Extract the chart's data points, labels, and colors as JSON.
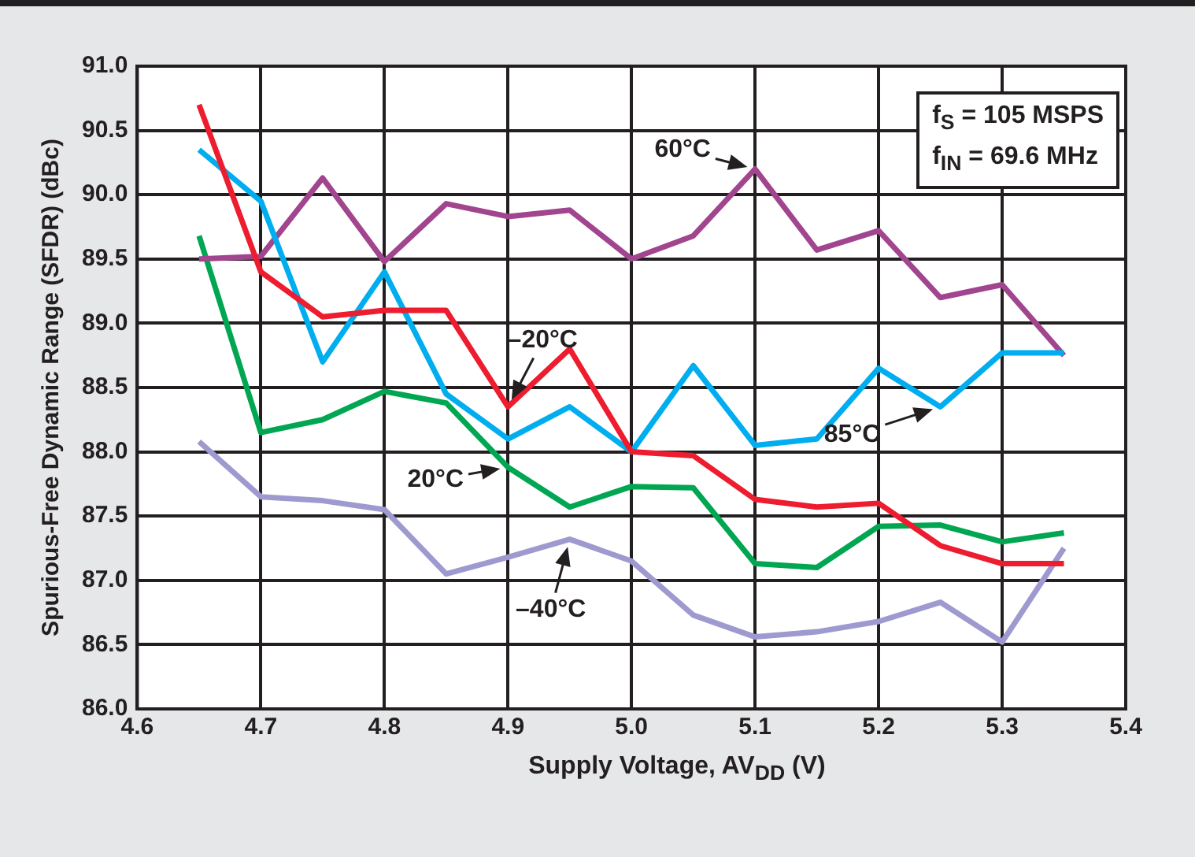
{
  "chart_data": {
    "type": "line",
    "xlabel": "Supply Voltage, AV$_{DD}$ (V)",
    "ylabel": "Spurious-Free Dynamic Range (SFDR) (dBc)",
    "x": [
      4.65,
      4.7,
      4.75,
      4.8,
      4.85,
      4.9,
      4.95,
      5.0,
      5.05,
      5.1,
      5.15,
      5.2,
      5.25,
      5.3,
      5.35
    ],
    "series": [
      {
        "name": "–20°C",
        "color": "#ed1c2e",
        "values": [
          90.7,
          89.4,
          89.05,
          89.1,
          89.1,
          88.35,
          88.8,
          88.0,
          87.97,
          87.63,
          87.57,
          87.6,
          87.27,
          87.13,
          87.13
        ]
      },
      {
        "name": "85°C",
        "color": "#00aeef",
        "values": [
          90.35,
          89.95,
          88.7,
          89.4,
          88.45,
          88.1,
          88.35,
          88.0,
          88.67,
          88.05,
          88.1,
          88.65,
          88.35,
          88.77,
          88.77
        ]
      },
      {
        "name": "60°C",
        "color": "#a0458e",
        "values": [
          89.5,
          89.52,
          90.13,
          89.48,
          89.93,
          89.83,
          89.88,
          89.5,
          89.68,
          90.2,
          89.57,
          89.72,
          89.2,
          89.3,
          88.75
        ]
      },
      {
        "name": "20°C",
        "color": "#00a651",
        "values": [
          89.68,
          88.15,
          88.25,
          88.47,
          88.38,
          87.88,
          87.57,
          87.73,
          87.72,
          87.13,
          87.1,
          87.42,
          87.43,
          87.3,
          87.37
        ]
      },
      {
        "name": "–40°C",
        "color": "#9e9ad0",
        "values": [
          88.08,
          87.65,
          87.62,
          87.55,
          87.05,
          87.18,
          87.32,
          87.15,
          86.73,
          86.56,
          86.6,
          86.68,
          86.83,
          86.52,
          87.25
        ]
      }
    ],
    "xlim": [
      4.6,
      5.4
    ],
    "xticks": [
      4.6,
      4.7,
      4.8,
      4.9,
      {
        "value": 5.0,
        "label": "5.0"
      },
      5.1,
      5.2,
      5.3,
      5.4
    ],
    "ylim": [
      86,
      91
    ],
    "yticks": [
      {
        "value": 86,
        "label": "86.0"
      },
      {
        "value": 86.5,
        "label": "86.5"
      },
      {
        "value": 87,
        "label": "87.0"
      },
      {
        "value": 87.5,
        "label": "87.5"
      },
      {
        "value": 88,
        "label": "88.0"
      },
      {
        "value": 88.5,
        "label": "88.5"
      },
      {
        "value": 89,
        "label": "89.0"
      },
      {
        "value": 89.5,
        "label": "89.5"
      },
      {
        "value": 90,
        "label": "90.0"
      },
      {
        "value": 90.5,
        "label": "90.5"
      },
      {
        "value": 91,
        "label": "91.0"
      }
    ],
    "grid": true,
    "legend": false,
    "marker": "none",
    "line_style": "solid",
    "annotations": [
      "f$_{S}$ = 105 MSPS",
      "f$_{IN}$ = 69.6 MHz"
    ]
  }
}
